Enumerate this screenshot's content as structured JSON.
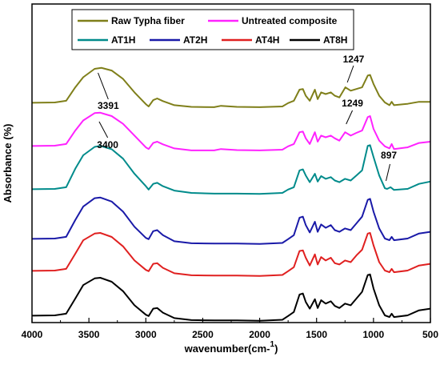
{
  "chart_data": {
    "type": "line",
    "xlabel": "wavenumber(cm-",
    "xlabel_sup": "1",
    "xlabel_close": ")",
    "ylabel": "Absorbance (%)",
    "xlim": [
      4000,
      500
    ],
    "x_reversed": true,
    "xticks": [
      4000,
      3500,
      3000,
      2500,
      2000,
      1500,
      1000,
      500
    ],
    "yticks_shown": false,
    "grid": false,
    "legend_position": "top-center",
    "series": [
      {
        "name": "Raw Typha fiber",
        "color": "#7f7f1a",
        "points": [
          [
            4000,
            0.99
          ],
          [
            3800,
            1.0
          ],
          [
            3700,
            1.05
          ],
          [
            3620,
            1.45
          ],
          [
            3550,
            1.75
          ],
          [
            3450,
            2.0
          ],
          [
            3391,
            2.03
          ],
          [
            3300,
            1.95
          ],
          [
            3200,
            1.7
          ],
          [
            3100,
            1.3
          ],
          [
            3000,
            0.95
          ],
          [
            2975,
            0.88
          ],
          [
            2935,
            1.07
          ],
          [
            2900,
            1.12
          ],
          [
            2850,
            1.04
          ],
          [
            2750,
            0.92
          ],
          [
            2600,
            0.87
          ],
          [
            2400,
            0.86
          ],
          [
            2340,
            0.9
          ],
          [
            2200,
            0.87
          ],
          [
            2000,
            0.86
          ],
          [
            1800,
            0.88
          ],
          [
            1750,
            0.98
          ],
          [
            1700,
            1.05
          ],
          [
            1650,
            1.38
          ],
          [
            1620,
            1.4
          ],
          [
            1595,
            1.2
          ],
          [
            1560,
            1.05
          ],
          [
            1515,
            1.38
          ],
          [
            1490,
            1.1
          ],
          [
            1460,
            1.3
          ],
          [
            1420,
            1.25
          ],
          [
            1375,
            1.3
          ],
          [
            1340,
            1.2
          ],
          [
            1300,
            1.15
          ],
          [
            1247,
            1.45
          ],
          [
            1200,
            1.35
          ],
          [
            1150,
            1.4
          ],
          [
            1100,
            1.45
          ],
          [
            1050,
            1.8
          ],
          [
            1030,
            1.82
          ],
          [
            1000,
            1.55
          ],
          [
            950,
            1.2
          ],
          [
            900,
            1.0
          ],
          [
            860,
            0.92
          ],
          [
            840,
            1.02
          ],
          [
            820,
            0.92
          ],
          [
            700,
            0.96
          ],
          [
            600,
            1.02
          ],
          [
            500,
            1.02
          ]
        ]
      },
      {
        "name": "Untreated composite",
        "color": "#ff22ff",
        "points": [
          [
            4000,
            0.99
          ],
          [
            3800,
            1.0
          ],
          [
            3700,
            1.05
          ],
          [
            3620,
            1.45
          ],
          [
            3550,
            1.75
          ],
          [
            3450,
            1.97
          ],
          [
            3400,
            1.98
          ],
          [
            3300,
            1.88
          ],
          [
            3200,
            1.65
          ],
          [
            3100,
            1.3
          ],
          [
            3000,
            0.95
          ],
          [
            2975,
            0.9
          ],
          [
            2935,
            1.08
          ],
          [
            2900,
            1.12
          ],
          [
            2850,
            1.04
          ],
          [
            2750,
            0.92
          ],
          [
            2600,
            0.86
          ],
          [
            2400,
            0.86
          ],
          [
            2340,
            0.9
          ],
          [
            2200,
            0.87
          ],
          [
            2000,
            0.86
          ],
          [
            1800,
            0.88
          ],
          [
            1750,
            0.98
          ],
          [
            1700,
            1.05
          ],
          [
            1650,
            1.4
          ],
          [
            1620,
            1.42
          ],
          [
            1595,
            1.22
          ],
          [
            1560,
            1.05
          ],
          [
            1515,
            1.4
          ],
          [
            1490,
            1.12
          ],
          [
            1460,
            1.3
          ],
          [
            1420,
            1.25
          ],
          [
            1375,
            1.3
          ],
          [
            1340,
            1.22
          ],
          [
            1300,
            1.15
          ],
          [
            1249,
            1.4
          ],
          [
            1200,
            1.3
          ],
          [
            1150,
            1.38
          ],
          [
            1100,
            1.45
          ],
          [
            1050,
            1.85
          ],
          [
            1030,
            1.88
          ],
          [
            1000,
            1.5
          ],
          [
            950,
            1.15
          ],
          [
            900,
            0.98
          ],
          [
            860,
            0.92
          ],
          [
            840,
            1.05
          ],
          [
            820,
            0.9
          ],
          [
            700,
            0.95
          ],
          [
            600,
            1.08
          ],
          [
            500,
            1.12
          ]
        ]
      },
      {
        "name": "AT1H",
        "color": "#008b8b",
        "points": [
          [
            4000,
            0.99
          ],
          [
            3800,
            1.0
          ],
          [
            3700,
            1.05
          ],
          [
            3620,
            1.6
          ],
          [
            3550,
            2.0
          ],
          [
            3450,
            2.25
          ],
          [
            3400,
            2.28
          ],
          [
            3300,
            2.18
          ],
          [
            3200,
            1.9
          ],
          [
            3100,
            1.45
          ],
          [
            3000,
            1.08
          ],
          [
            2975,
            0.98
          ],
          [
            2935,
            1.15
          ],
          [
            2900,
            1.18
          ],
          [
            2850,
            1.08
          ],
          [
            2750,
            0.95
          ],
          [
            2600,
            0.88
          ],
          [
            2400,
            0.86
          ],
          [
            2200,
            0.86
          ],
          [
            2000,
            0.85
          ],
          [
            1800,
            0.88
          ],
          [
            1750,
            0.98
          ],
          [
            1700,
            1.05
          ],
          [
            1650,
            1.55
          ],
          [
            1620,
            1.58
          ],
          [
            1595,
            1.4
          ],
          [
            1560,
            1.2
          ],
          [
            1515,
            1.45
          ],
          [
            1490,
            1.22
          ],
          [
            1460,
            1.38
          ],
          [
            1420,
            1.3
          ],
          [
            1375,
            1.35
          ],
          [
            1340,
            1.25
          ],
          [
            1300,
            1.2
          ],
          [
            1250,
            1.3
          ],
          [
            1200,
            1.25
          ],
          [
            1150,
            1.4
          ],
          [
            1100,
            1.55
          ],
          [
            1050,
            2.28
          ],
          [
            1030,
            2.3
          ],
          [
            1000,
            1.95
          ],
          [
            950,
            1.4
          ],
          [
            900,
            1.02
          ],
          [
            880,
            1.0
          ],
          [
            850,
            1.05
          ],
          [
            820,
            0.97
          ],
          [
            700,
            1.0
          ],
          [
            600,
            1.15
          ],
          [
            500,
            1.22
          ]
        ]
      },
      {
        "name": "AT2H",
        "color": "#1a1aa8",
        "points": [
          [
            4000,
            0.99
          ],
          [
            3800,
            1.0
          ],
          [
            3700,
            1.05
          ],
          [
            3620,
            1.55
          ],
          [
            3550,
            1.95
          ],
          [
            3450,
            2.2
          ],
          [
            3400,
            2.22
          ],
          [
            3300,
            2.1
          ],
          [
            3200,
            1.8
          ],
          [
            3100,
            1.35
          ],
          [
            3000,
            1.02
          ],
          [
            2975,
            0.98
          ],
          [
            2935,
            1.22
          ],
          [
            2900,
            1.25
          ],
          [
            2850,
            1.1
          ],
          [
            2750,
            0.92
          ],
          [
            2600,
            0.86
          ],
          [
            2400,
            0.85
          ],
          [
            2200,
            0.85
          ],
          [
            2000,
            0.84
          ],
          [
            1800,
            0.87
          ],
          [
            1750,
            0.98
          ],
          [
            1700,
            1.1
          ],
          [
            1650,
            1.62
          ],
          [
            1620,
            1.65
          ],
          [
            1595,
            1.4
          ],
          [
            1560,
            1.18
          ],
          [
            1515,
            1.5
          ],
          [
            1490,
            1.2
          ],
          [
            1460,
            1.42
          ],
          [
            1420,
            1.32
          ],
          [
            1375,
            1.4
          ],
          [
            1340,
            1.25
          ],
          [
            1300,
            1.2
          ],
          [
            1250,
            1.3
          ],
          [
            1200,
            1.25
          ],
          [
            1150,
            1.45
          ],
          [
            1100,
            1.65
          ],
          [
            1050,
            2.15
          ],
          [
            1030,
            2.18
          ],
          [
            1000,
            1.8
          ],
          [
            950,
            1.3
          ],
          [
            900,
            1.0
          ],
          [
            860,
            0.95
          ],
          [
            840,
            1.05
          ],
          [
            820,
            0.95
          ],
          [
            700,
            1.0
          ],
          [
            600,
            1.15
          ],
          [
            500,
            1.2
          ]
        ]
      },
      {
        "name": "AT4H",
        "color": "#e02020",
        "points": [
          [
            4000,
            0.99
          ],
          [
            3800,
            1.0
          ],
          [
            3700,
            1.05
          ],
          [
            3620,
            1.5
          ],
          [
            3550,
            1.9
          ],
          [
            3450,
            2.1
          ],
          [
            3400,
            2.12
          ],
          [
            3300,
            2.0
          ],
          [
            3200,
            1.72
          ],
          [
            3100,
            1.3
          ],
          [
            3000,
            1.02
          ],
          [
            2975,
            0.98
          ],
          [
            2935,
            1.2
          ],
          [
            2900,
            1.22
          ],
          [
            2850,
            1.08
          ],
          [
            2750,
            0.92
          ],
          [
            2600,
            0.86
          ],
          [
            2400,
            0.85
          ],
          [
            2200,
            0.85
          ],
          [
            2000,
            0.84
          ],
          [
            1800,
            0.87
          ],
          [
            1750,
            0.98
          ],
          [
            1700,
            1.1
          ],
          [
            1650,
            1.58
          ],
          [
            1620,
            1.6
          ],
          [
            1595,
            1.38
          ],
          [
            1560,
            1.15
          ],
          [
            1515,
            1.48
          ],
          [
            1490,
            1.18
          ],
          [
            1460,
            1.4
          ],
          [
            1420,
            1.3
          ],
          [
            1375,
            1.38
          ],
          [
            1340,
            1.22
          ],
          [
            1300,
            1.18
          ],
          [
            1250,
            1.3
          ],
          [
            1200,
            1.25
          ],
          [
            1150,
            1.45
          ],
          [
            1100,
            1.62
          ],
          [
            1050,
            2.1
          ],
          [
            1030,
            2.12
          ],
          [
            1000,
            1.75
          ],
          [
            950,
            1.25
          ],
          [
            900,
            1.0
          ],
          [
            860,
            0.95
          ],
          [
            840,
            1.05
          ],
          [
            820,
            0.95
          ],
          [
            700,
            1.0
          ],
          [
            600,
            1.15
          ],
          [
            500,
            1.2
          ]
        ]
      },
      {
        "name": "AT8H",
        "color": "#000000",
        "points": [
          [
            4000,
            0.99
          ],
          [
            3800,
            1.0
          ],
          [
            3700,
            1.05
          ],
          [
            3620,
            1.5
          ],
          [
            3550,
            1.9
          ],
          [
            3450,
            2.1
          ],
          [
            3400,
            2.12
          ],
          [
            3300,
            2.0
          ],
          [
            3200,
            1.72
          ],
          [
            3100,
            1.3
          ],
          [
            3000,
            1.02
          ],
          [
            2975,
            0.98
          ],
          [
            2935,
            1.2
          ],
          [
            2900,
            1.22
          ],
          [
            2850,
            1.08
          ],
          [
            2750,
            0.92
          ],
          [
            2600,
            0.86
          ],
          [
            2400,
            0.85
          ],
          [
            2200,
            0.85
          ],
          [
            2000,
            0.84
          ],
          [
            1800,
            0.87
          ],
          [
            1750,
            0.98
          ],
          [
            1700,
            1.1
          ],
          [
            1650,
            1.62
          ],
          [
            1620,
            1.65
          ],
          [
            1595,
            1.4
          ],
          [
            1560,
            1.2
          ],
          [
            1515,
            1.48
          ],
          [
            1490,
            1.22
          ],
          [
            1460,
            1.45
          ],
          [
            1420,
            1.35
          ],
          [
            1375,
            1.42
          ],
          [
            1340,
            1.28
          ],
          [
            1300,
            1.22
          ],
          [
            1250,
            1.35
          ],
          [
            1200,
            1.3
          ],
          [
            1150,
            1.5
          ],
          [
            1100,
            1.7
          ],
          [
            1050,
            2.2
          ],
          [
            1030,
            2.22
          ],
          [
            1000,
            1.8
          ],
          [
            950,
            1.3
          ],
          [
            900,
            1.0
          ],
          [
            860,
            0.95
          ],
          [
            840,
            1.05
          ],
          [
            820,
            0.95
          ],
          [
            700,
            1.0
          ],
          [
            600,
            1.15
          ],
          [
            500,
            1.2
          ]
        ]
      }
    ],
    "annotations": [
      {
        "text": "3391",
        "series": "Raw Typha fiber",
        "x": 3391
      },
      {
        "text": "1247",
        "series": "Raw Typha fiber",
        "x": 1247
      },
      {
        "text": "3400",
        "series": "Untreated composite",
        "x": 3400
      },
      {
        "text": "1249",
        "series": "Untreated composite",
        "x": 1249
      },
      {
        "text": "897",
        "series": "AT1H",
        "x": 897
      }
    ]
  }
}
